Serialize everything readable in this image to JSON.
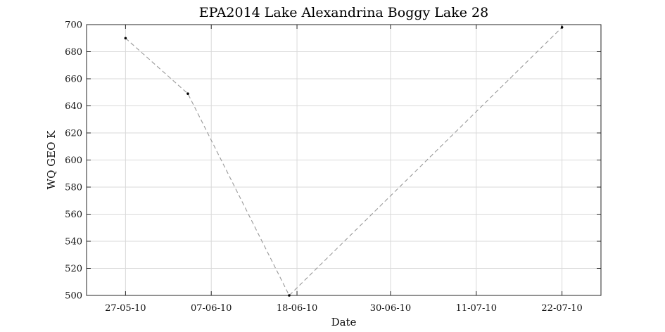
{
  "chart_data": {
    "type": "line",
    "title": "EPA2014 Lake Alexandrina Boggy Lake 28",
    "xlabel": "Date",
    "ylabel": "WQ GEO K",
    "xlim": [
      "2010-05-22",
      "2010-07-27"
    ],
    "ylim": [
      500,
      700
    ],
    "x_ticks": [
      {
        "value": "2010-05-27",
        "label": "27-05-10"
      },
      {
        "value": "2010-06-07",
        "label": "07-06-10"
      },
      {
        "value": "2010-06-18",
        "label": "18-06-10"
      },
      {
        "value": "2010-06-30",
        "label": "30-06-10"
      },
      {
        "value": "2010-07-11",
        "label": "11-07-10"
      },
      {
        "value": "2010-07-22",
        "label": "22-07-10"
      }
    ],
    "y_ticks": [
      500,
      520,
      540,
      560,
      580,
      600,
      620,
      640,
      660,
      680,
      700
    ],
    "grid": true,
    "series": [
      {
        "x": [
          "2010-05-27",
          "2010-06-04",
          "2010-06-17",
          "2010-07-22"
        ],
        "values": [
          690,
          649,
          500,
          698
        ],
        "line_color": "#999999",
        "marker_color": "#000000"
      }
    ]
  }
}
